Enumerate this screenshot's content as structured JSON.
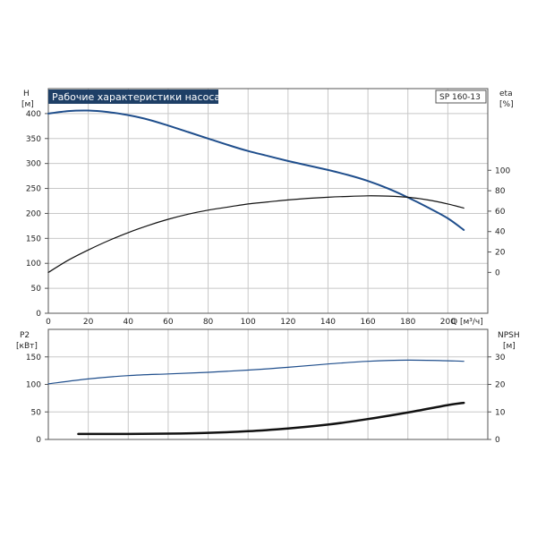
{
  "chart_data": [
    {
      "type": "line",
      "title": "Рабочие характеристики насоса",
      "model_label": "SP 160-13",
      "left_axis": {
        "label": "H",
        "unit": "[м]",
        "ticks": [
          0,
          50,
          100,
          150,
          200,
          250,
          300,
          350,
          400
        ],
        "ylim": [
          0,
          450
        ]
      },
      "right_axis": {
        "label": "eta",
        "unit": "[%]",
        "ticks": [
          0,
          20,
          40,
          60,
          80,
          100
        ],
        "ylim": [
          -40,
          180
        ]
      },
      "x_axis": {
        "label": "Q [м³/ч]",
        "ticks": [
          0,
          20,
          40,
          60,
          80,
          100,
          120,
          140,
          160,
          180,
          200
        ],
        "xlim": [
          0,
          220
        ]
      },
      "grid": true,
      "series": [
        {
          "axis": "left",
          "color": "#1f4e8c",
          "width": 2,
          "x": [
            0,
            10,
            20,
            30,
            40,
            50,
            60,
            70,
            80,
            90,
            100,
            110,
            120,
            130,
            140,
            150,
            160,
            170,
            180,
            190,
            200,
            208
          ],
          "y": [
            400,
            405,
            406,
            403,
            397,
            388,
            376,
            363,
            350,
            337,
            325,
            315,
            305,
            296,
            287,
            277,
            265,
            250,
            232,
            212,
            190,
            167
          ]
        },
        {
          "axis": "right",
          "color": "#111111",
          "width": 1.2,
          "x": [
            0,
            10,
            20,
            30,
            40,
            50,
            60,
            70,
            80,
            90,
            100,
            110,
            120,
            130,
            140,
            150,
            160,
            170,
            180,
            190,
            200,
            208
          ],
          "y": [
            0,
            12,
            22,
            31,
            39,
            46,
            52,
            57,
            61,
            64,
            67,
            69,
            71,
            72.5,
            73.6,
            74.4,
            75,
            74.7,
            73.6,
            71,
            67,
            63
          ]
        }
      ]
    },
    {
      "type": "line",
      "left_axis": {
        "label": "P2",
        "unit": "[кВт]",
        "ticks": [
          0,
          50,
          100,
          150
        ],
        "ylim": [
          0,
          200
        ]
      },
      "right_axis": {
        "label": "NPSH",
        "unit": "[м]",
        "ticks": [
          0,
          10,
          20,
          30
        ],
        "ylim": [
          0,
          40
        ]
      },
      "x_axis": {
        "xlim": [
          0,
          220
        ]
      },
      "grid": true,
      "series": [
        {
          "axis": "left",
          "color": "#1f4e8c",
          "width": 1.2,
          "x": [
            0,
            20,
            40,
            60,
            80,
            100,
            120,
            140,
            160,
            180,
            200,
            208
          ],
          "y": [
            101,
            110,
            116,
            119,
            122,
            126,
            131,
            137,
            142,
            144,
            143,
            142
          ]
        },
        {
          "axis": "right",
          "color": "#111111",
          "width": 2.5,
          "x": [
            15,
            40,
            60,
            80,
            100,
            120,
            140,
            160,
            180,
            200,
            208
          ],
          "y": [
            2.0,
            2.0,
            2.1,
            2.4,
            3.0,
            4.0,
            5.4,
            7.4,
            9.8,
            12.5,
            13.3
          ]
        }
      ]
    }
  ]
}
